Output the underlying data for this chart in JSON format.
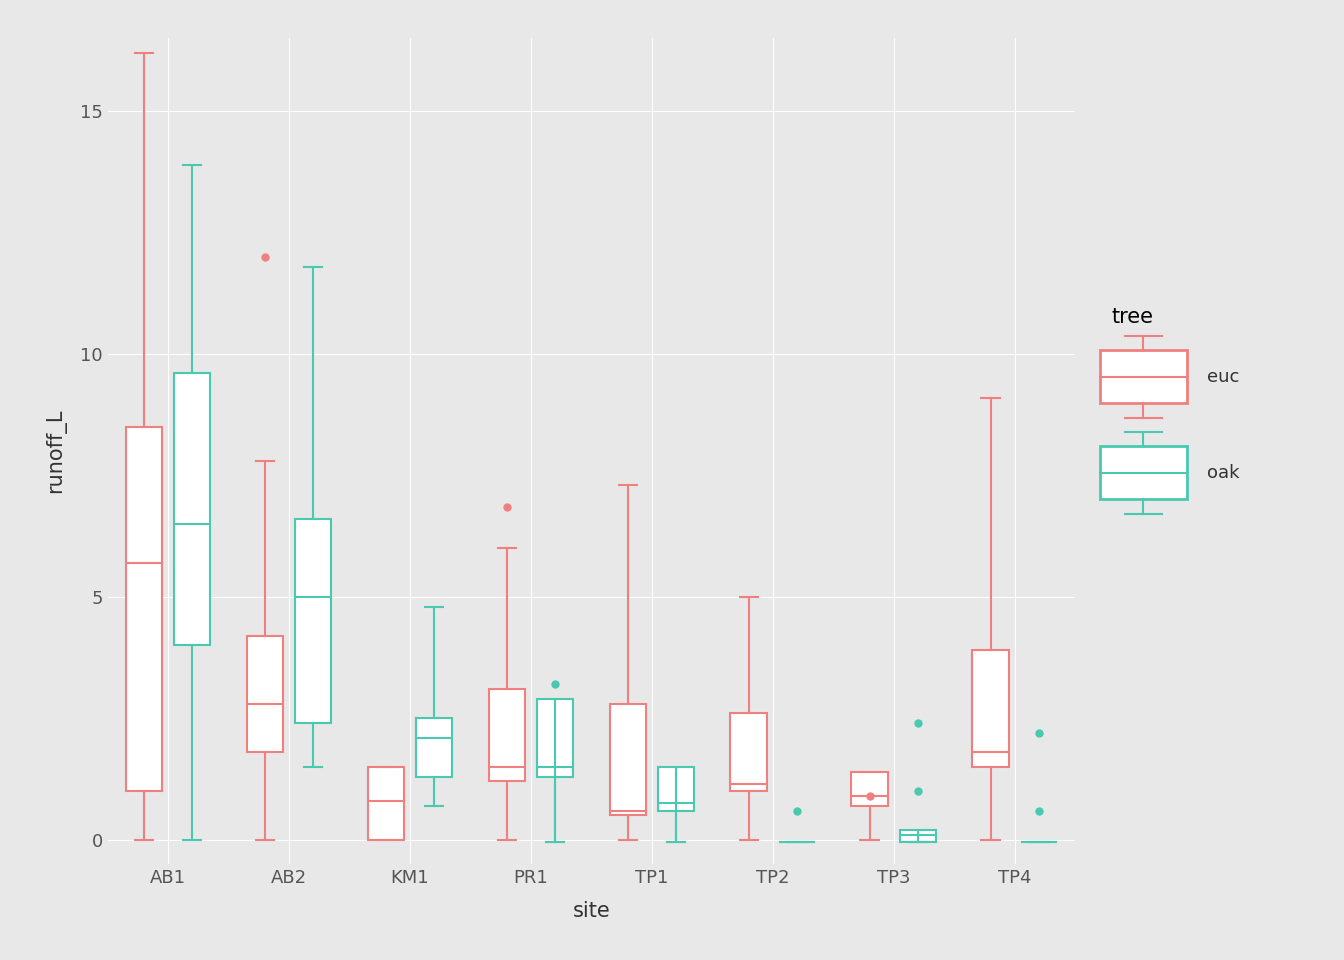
{
  "sites": [
    "AB1",
    "AB2",
    "KM1",
    "PR1",
    "TP1",
    "TP2",
    "TP3",
    "TP4"
  ],
  "euc_color": "#F08080",
  "oak_color": "#48C9B0",
  "background_color": "#E8E8E8",
  "grid_color": "#FFFFFF",
  "title": "",
  "xlabel": "site",
  "ylabel": "runoff_L",
  "ylim": [
    -0.5,
    16.5
  ],
  "yticks": [
    0,
    5,
    10,
    15
  ],
  "euc_data": {
    "AB1": {
      "q1": 1.0,
      "median": 5.7,
      "q3": 8.5,
      "whislo": 0.0,
      "whishi": 16.2,
      "fliers": []
    },
    "AB2": {
      "q1": 1.8,
      "median": 2.8,
      "q3": 4.2,
      "whislo": 0.0,
      "whishi": 7.8,
      "fliers": [
        12.0
      ]
    },
    "KM1": {
      "q1": 0.0,
      "median": 0.8,
      "q3": 1.5,
      "whislo": 0.0,
      "whishi": 1.5,
      "fliers": []
    },
    "PR1": {
      "q1": 1.2,
      "median": 1.5,
      "q3": 3.1,
      "whislo": 0.0,
      "whishi": 6.0,
      "fliers": [
        6.85
      ]
    },
    "TP1": {
      "q1": 0.5,
      "median": 0.6,
      "q3": 2.8,
      "whislo": 0.0,
      "whishi": 7.3,
      "fliers": []
    },
    "TP2": {
      "q1": 1.0,
      "median": 1.15,
      "q3": 2.6,
      "whislo": 0.0,
      "whishi": 5.0,
      "fliers": []
    },
    "TP3": {
      "q1": 0.7,
      "median": 0.9,
      "q3": 1.4,
      "whislo": 0.0,
      "whishi": 1.4,
      "fliers": [
        0.9
      ]
    },
    "TP4": {
      "q1": 1.5,
      "median": 1.8,
      "q3": 3.9,
      "whislo": 0.0,
      "whishi": 9.1,
      "fliers": []
    }
  },
  "oak_data": {
    "AB1": {
      "q1": 4.0,
      "median": 6.5,
      "q3": 9.6,
      "whislo": 0.0,
      "whishi": 13.9,
      "fliers": []
    },
    "AB2": {
      "q1": 2.4,
      "median": 5.0,
      "q3": 6.6,
      "whislo": 1.5,
      "whishi": 11.8,
      "fliers": []
    },
    "KM1": {
      "q1": 1.3,
      "median": 2.1,
      "q3": 2.5,
      "whislo": 0.7,
      "whishi": 4.8,
      "fliers": []
    },
    "PR1": {
      "q1": 1.3,
      "median": 1.5,
      "q3": 2.9,
      "whislo": -0.05,
      "whishi": -0.05,
      "fliers": [
        3.2
      ]
    },
    "TP1": {
      "q1": 0.6,
      "median": 0.75,
      "q3": 1.5,
      "whislo": -0.05,
      "whishi": -0.05,
      "fliers": []
    },
    "TP2": {
      "q1": -0.05,
      "median": -0.05,
      "q3": -0.05,
      "whislo": -0.05,
      "whishi": -0.05,
      "fliers": [
        0.6
      ]
    },
    "TP3": {
      "q1": -0.05,
      "median": 0.1,
      "q3": 0.2,
      "whislo": -0.05,
      "whishi": -0.05,
      "fliers": [
        2.4,
        1.0
      ]
    },
    "TP4": {
      "q1": -0.05,
      "median": -0.05,
      "q3": -0.05,
      "whislo": -0.05,
      "whishi": -0.05,
      "fliers": [
        2.2,
        0.6
      ]
    }
  }
}
